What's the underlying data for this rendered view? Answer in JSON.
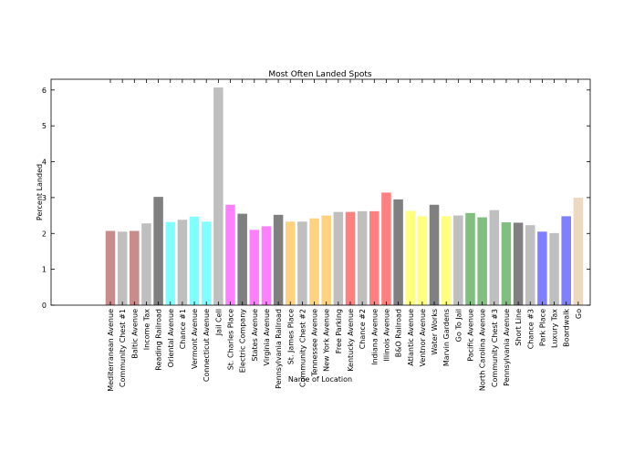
{
  "chart_data": {
    "type": "bar",
    "title": "Most Often Landed Spots",
    "x_label": "Name of Location",
    "y_label": "Percent Landed",
    "categories": [
      "Mediterranean Avenue",
      "Community Chest #1",
      "Baltic Avenue",
      "Income Tax",
      "Reading Railroad",
      "Oriental Avenue",
      "Chance #1",
      "Vermont Avenue",
      "Connecticut Avenue",
      "Jail Cell",
      "St. Charles Place",
      "Electric Company",
      "States Avenue",
      "Virginia Avenue",
      "Pennsylvania Railroad",
      "St. James Place",
      "Community Chest #2",
      "Tennessee Avenue",
      "New York Avenue",
      "Free Parking",
      "Kentucky Avenue",
      "Chance #2",
      "Indiana Avenue",
      "Illinois Avenue",
      "B&O Railroad",
      "Atlantic Avenue",
      "Ventnor Avenue",
      "Water Works",
      "Marvin Gardens",
      "Go To Jail",
      "Pacific Avenue",
      "North Carolina Avenue",
      "Community Chest #3",
      "Pennsylvania Avenue",
      "Short Line",
      "Chance #3",
      "Park Place",
      "Luxury Tax",
      "Boardwalk",
      "Go"
    ],
    "values": [
      2.07,
      2.05,
      2.07,
      2.28,
      3.02,
      2.32,
      2.38,
      2.47,
      2.33,
      6.07,
      2.8,
      2.55,
      2.1,
      2.2,
      2.52,
      2.33,
      2.33,
      2.42,
      2.5,
      2.6,
      2.6,
      2.62,
      2.62,
      3.14,
      2.95,
      2.63,
      2.48,
      2.8,
      2.48,
      2.5,
      2.57,
      2.45,
      2.65,
      2.31,
      2.3,
      2.23,
      2.05,
      2.01,
      2.48,
      3.0
    ],
    "colors": [
      "#c98c8c",
      "#bfbfbf",
      "#c98c8c",
      "#bfbfbf",
      "#808080",
      "#80ffff",
      "#bfbfbf",
      "#80ffff",
      "#80ffff",
      "#bfbfbf",
      "#ff80ff",
      "#808080",
      "#ff80ff",
      "#ff80ff",
      "#808080",
      "#ffd280",
      "#bfbfbf",
      "#ffd280",
      "#ffd280",
      "#bfbfbf",
      "#ff8080",
      "#bfbfbf",
      "#ff8080",
      "#ff8080",
      "#808080",
      "#ffff80",
      "#ffff80",
      "#808080",
      "#ffff80",
      "#bfbfbf",
      "#80bf80",
      "#80bf80",
      "#bfbfbf",
      "#80bf80",
      "#808080",
      "#bfbfbf",
      "#8080ff",
      "#bfbfbf",
      "#8080ff",
      "#ecd9c0"
    ],
    "ylim": [
      0,
      6.3
    ],
    "yticks": [
      0,
      1,
      2,
      3,
      4,
      5,
      6
    ]
  }
}
